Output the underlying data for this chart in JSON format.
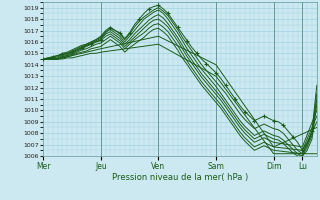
{
  "xlabel": "Pression niveau de la mer( hPa )",
  "background_color": "#cce8f0",
  "plot_bg_color": "#cce8f0",
  "grid_color": "#99cce0",
  "line_color": "#1a5c1a",
  "marker_color": "#1a5c1a",
  "ylim": [
    1006,
    1019.5
  ],
  "yticks": [
    1006,
    1007,
    1008,
    1009,
    1010,
    1011,
    1012,
    1013,
    1014,
    1015,
    1016,
    1017,
    1018,
    1019
  ],
  "xtick_labels": [
    "Mer",
    "Jeu",
    "Ven",
    "Sam",
    "Dim",
    "Lu"
  ],
  "xtick_positions": [
    0,
    48,
    96,
    144,
    192,
    216
  ],
  "vline_positions": [
    48,
    96,
    144,
    192,
    216
  ],
  "total_hours": 228,
  "series": [
    {
      "x": [
        0,
        4,
        8,
        12,
        16,
        20,
        24,
        28,
        32,
        36,
        40,
        44,
        48,
        52,
        56,
        60,
        64,
        68,
        72,
        76,
        80,
        84,
        88,
        92,
        96,
        100,
        104,
        108,
        112,
        116,
        120,
        124,
        128,
        132,
        136,
        140,
        144,
        148,
        152,
        156,
        160,
        164,
        168,
        172,
        176,
        180,
        184,
        188,
        192,
        196,
        200,
        204,
        208,
        212,
        216,
        220,
        224,
        228
      ],
      "y": [
        1014.5,
        1014.6,
        1014.7,
        1014.8,
        1014.9,
        1015.0,
        1015.1,
        1015.3,
        1015.5,
        1015.7,
        1015.8,
        1016.0,
        1016.2,
        1016.8,
        1017.2,
        1017.0,
        1016.8,
        1016.3,
        1016.8,
        1017.5,
        1018.0,
        1018.5,
        1018.9,
        1019.1,
        1019.2,
        1018.9,
        1018.5,
        1017.9,
        1017.3,
        1016.7,
        1016.1,
        1015.5,
        1015.0,
        1014.5,
        1014.1,
        1013.7,
        1013.3,
        1012.8,
        1012.2,
        1011.6,
        1011.0,
        1010.4,
        1009.9,
        1009.5,
        1009.1,
        1009.3,
        1009.5,
        1009.3,
        1009.1,
        1009.0,
        1008.7,
        1008.2,
        1007.7,
        1007.2,
        1006.5,
        1007.2,
        1008.2,
        1012.2
      ],
      "with_markers": true
    },
    {
      "x": [
        0,
        4,
        8,
        12,
        16,
        20,
        24,
        28,
        32,
        36,
        40,
        44,
        48,
        52,
        56,
        60,
        64,
        68,
        72,
        76,
        80,
        84,
        88,
        92,
        96,
        100,
        104,
        108,
        112,
        116,
        120,
        124,
        128,
        132,
        136,
        140,
        144,
        148,
        152,
        156,
        160,
        164,
        168,
        172,
        176,
        180,
        184,
        188,
        192,
        196,
        200,
        204,
        208,
        212,
        216,
        220,
        224,
        228
      ],
      "y": [
        1014.5,
        1014.6,
        1014.7,
        1014.8,
        1015.0,
        1015.1,
        1015.3,
        1015.5,
        1015.7,
        1015.8,
        1016.0,
        1016.2,
        1016.5,
        1017.0,
        1017.3,
        1017.0,
        1016.7,
        1016.2,
        1016.7,
        1017.3,
        1017.8,
        1018.2,
        1018.5,
        1018.8,
        1019.0,
        1018.7,
        1018.3,
        1017.7,
        1017.1,
        1016.4,
        1015.8,
        1015.2,
        1014.6,
        1014.0,
        1013.5,
        1013.0,
        1012.5,
        1012.0,
        1011.5,
        1010.9,
        1010.3,
        1009.7,
        1009.2,
        1008.8,
        1008.4,
        1008.6,
        1008.8,
        1008.6,
        1008.4,
        1008.3,
        1008.0,
        1007.5,
        1007.0,
        1006.5,
        1006.2,
        1007.0,
        1008.0,
        1011.5
      ],
      "with_markers": false
    },
    {
      "x": [
        0,
        4,
        8,
        12,
        16,
        20,
        24,
        28,
        32,
        36,
        40,
        44,
        48,
        52,
        56,
        60,
        64,
        68,
        72,
        76,
        80,
        84,
        88,
        92,
        96,
        100,
        104,
        108,
        112,
        116,
        120,
        124,
        128,
        132,
        136,
        140,
        144,
        148,
        152,
        156,
        160,
        164,
        168,
        172,
        176,
        180,
        184,
        188,
        192,
        196,
        200,
        204,
        208,
        212,
        216,
        220,
        224,
        228
      ],
      "y": [
        1014.5,
        1014.5,
        1014.6,
        1014.7,
        1014.9,
        1015.0,
        1015.2,
        1015.4,
        1015.6,
        1015.8,
        1016.0,
        1016.2,
        1016.4,
        1016.9,
        1017.1,
        1016.8,
        1016.5,
        1016.0,
        1016.5,
        1017.0,
        1017.5,
        1018.0,
        1018.3,
        1018.6,
        1018.8,
        1018.5,
        1018.0,
        1017.4,
        1016.8,
        1016.1,
        1015.4,
        1014.8,
        1014.2,
        1013.6,
        1013.1,
        1012.6,
        1012.1,
        1011.5,
        1010.9,
        1010.3,
        1009.7,
        1009.1,
        1008.6,
        1008.2,
        1007.8,
        1008.0,
        1008.2,
        1008.0,
        1007.8,
        1007.7,
        1007.4,
        1007.0,
        1006.6,
        1006.2,
        1006.0,
        1006.8,
        1007.8,
        1011.0
      ],
      "with_markers": false
    },
    {
      "x": [
        0,
        4,
        8,
        12,
        16,
        20,
        24,
        28,
        32,
        36,
        40,
        44,
        48,
        52,
        56,
        60,
        64,
        68,
        72,
        76,
        80,
        84,
        88,
        92,
        96,
        100,
        104,
        108,
        112,
        116,
        120,
        124,
        128,
        132,
        136,
        140,
        144,
        148,
        152,
        156,
        160,
        164,
        168,
        172,
        176,
        180,
        184,
        188,
        192,
        196,
        200,
        204,
        208,
        212,
        216,
        220,
        224,
        228
      ],
      "y": [
        1014.5,
        1014.5,
        1014.5,
        1014.6,
        1014.8,
        1014.9,
        1015.1,
        1015.3,
        1015.5,
        1015.7,
        1015.9,
        1016.1,
        1016.3,
        1016.7,
        1016.9,
        1016.6,
        1016.3,
        1015.8,
        1016.2,
        1016.7,
        1017.1,
        1017.5,
        1017.9,
        1018.2,
        1018.4,
        1018.1,
        1017.6,
        1017.0,
        1016.4,
        1015.7,
        1015.0,
        1014.4,
        1013.8,
        1013.2,
        1012.7,
        1012.2,
        1011.7,
        1011.2,
        1010.6,
        1010.0,
        1009.4,
        1008.8,
        1008.3,
        1007.9,
        1007.5,
        1007.7,
        1007.9,
        1007.7,
        1007.5,
        1007.4,
        1007.1,
        1006.7,
        1006.3,
        1006.0,
        1006.0,
        1006.5,
        1007.5,
        1010.5
      ],
      "with_markers": false
    },
    {
      "x": [
        0,
        4,
        8,
        12,
        16,
        20,
        24,
        28,
        32,
        36,
        40,
        44,
        48,
        52,
        56,
        60,
        64,
        68,
        72,
        76,
        80,
        84,
        88,
        92,
        96,
        100,
        104,
        108,
        112,
        116,
        120,
        124,
        128,
        132,
        136,
        140,
        144,
        148,
        152,
        156,
        160,
        164,
        168,
        172,
        176,
        180,
        184,
        188,
        192,
        216,
        228
      ],
      "y": [
        1014.5,
        1014.5,
        1014.5,
        1014.5,
        1014.7,
        1014.8,
        1015.0,
        1015.2,
        1015.4,
        1015.6,
        1015.8,
        1016.0,
        1016.1,
        1016.5,
        1016.7,
        1016.4,
        1016.1,
        1015.6,
        1016.0,
        1016.4,
        1016.8,
        1017.2,
        1017.6,
        1017.9,
        1018.0,
        1017.7,
        1017.3,
        1016.7,
        1016.1,
        1015.4,
        1014.7,
        1014.1,
        1013.5,
        1012.9,
        1012.4,
        1011.9,
        1011.4,
        1010.9,
        1010.3,
        1009.7,
        1009.1,
        1008.5,
        1008.0,
        1007.6,
        1007.2,
        1007.4,
        1007.6,
        1007.4,
        1007.2,
        1006.8,
        1010.0
      ],
      "with_markers": false
    },
    {
      "x": [
        0,
        4,
        8,
        12,
        16,
        20,
        24,
        28,
        32,
        36,
        40,
        44,
        48,
        52,
        56,
        60,
        64,
        68,
        72,
        76,
        80,
        84,
        88,
        92,
        96,
        100,
        104,
        108,
        112,
        116,
        120,
        124,
        128,
        132,
        136,
        140,
        144,
        148,
        152,
        156,
        160,
        164,
        168,
        172,
        176,
        180,
        184,
        188,
        192,
        216,
        228
      ],
      "y": [
        1014.5,
        1014.5,
        1014.5,
        1014.5,
        1014.7,
        1014.8,
        1014.9,
        1015.1,
        1015.3,
        1015.4,
        1015.6,
        1015.8,
        1015.9,
        1016.2,
        1016.5,
        1016.2,
        1015.9,
        1015.4,
        1015.8,
        1016.2,
        1016.5,
        1016.8,
        1017.2,
        1017.5,
        1017.6,
        1017.3,
        1016.9,
        1016.3,
        1015.7,
        1015.0,
        1014.3,
        1013.7,
        1013.1,
        1012.5,
        1012.0,
        1011.5,
        1011.0,
        1010.5,
        1009.9,
        1009.3,
        1008.7,
        1008.1,
        1007.6,
        1007.2,
        1006.8,
        1007.0,
        1007.2,
        1007.0,
        1006.8,
        1006.5,
        1009.5
      ],
      "with_markers": false
    },
    {
      "x": [
        0,
        4,
        8,
        12,
        16,
        20,
        24,
        28,
        32,
        36,
        40,
        44,
        48,
        52,
        56,
        60,
        64,
        68,
        72,
        76,
        80,
        84,
        88,
        92,
        96,
        100,
        104,
        108,
        112,
        116,
        120,
        124,
        128,
        132,
        136,
        140,
        144,
        148,
        152,
        156,
        160,
        164,
        168,
        172,
        176,
        180,
        184,
        188,
        192,
        216,
        228
      ],
      "y": [
        1014.5,
        1014.5,
        1014.5,
        1014.5,
        1014.6,
        1014.7,
        1014.8,
        1015.0,
        1015.1,
        1015.2,
        1015.4,
        1015.5,
        1015.6,
        1015.9,
        1016.2,
        1015.9,
        1015.6,
        1015.1,
        1015.5,
        1015.8,
        1016.1,
        1016.4,
        1016.8,
        1017.1,
        1017.2,
        1016.9,
        1016.5,
        1015.9,
        1015.3,
        1014.6,
        1014.0,
        1013.4,
        1012.8,
        1012.2,
        1011.7,
        1011.2,
        1010.7,
        1010.2,
        1009.6,
        1009.0,
        1008.4,
        1007.8,
        1007.3,
        1006.9,
        1006.5,
        1006.7,
        1006.9,
        1006.7,
        1006.5,
        1006.2,
        1009.0
      ],
      "with_markers": false
    },
    {
      "x": [
        0,
        4,
        8,
        12,
        16,
        20,
        24,
        28,
        32,
        36,
        40,
        44,
        48,
        96,
        144,
        192,
        228
      ],
      "y": [
        1014.5,
        1014.5,
        1014.5,
        1014.5,
        1014.6,
        1014.7,
        1014.8,
        1014.9,
        1015.0,
        1015.1,
        1015.2,
        1015.3,
        1015.4,
        1016.5,
        1014.0,
        1006.8,
        1008.5
      ],
      "with_markers": false
    },
    {
      "x": [
        0,
        4,
        8,
        12,
        16,
        20,
        24,
        28,
        32,
        36,
        40,
        44,
        48,
        96,
        144,
        192,
        228
      ],
      "y": [
        1014.5,
        1014.5,
        1014.5,
        1014.5,
        1014.5,
        1014.6,
        1014.6,
        1014.7,
        1014.8,
        1014.9,
        1015.0,
        1015.0,
        1015.1,
        1015.8,
        1013.0,
        1006.2,
        1006.2
      ],
      "with_markers": false
    }
  ]
}
